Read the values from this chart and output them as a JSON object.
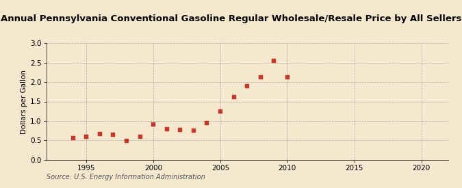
{
  "title": "Annual Pennsylvania Conventional Gasoline Regular Wholesale/Resale Price by All Sellers",
  "ylabel": "Dollars per Gallon",
  "source": "Source: U.S. Energy Information Administration",
  "background_color": "#f5e8ce",
  "plot_bg_color": "#f5e8ce",
  "years": [
    1994,
    1995,
    1996,
    1997,
    1998,
    1999,
    2000,
    2001,
    2002,
    2003,
    2004,
    2005,
    2006,
    2007,
    2008,
    2009,
    2010
  ],
  "values": [
    0.55,
    0.6,
    0.66,
    0.64,
    0.49,
    0.59,
    0.91,
    0.79,
    0.77,
    0.76,
    0.95,
    1.25,
    1.61,
    1.9,
    2.12,
    2.55,
    2.12
  ],
  "marker_color": "#c0392b",
  "marker_size": 4,
  "xlim": [
    1992,
    2022
  ],
  "ylim": [
    0.0,
    3.0
  ],
  "xticks": [
    1995,
    2000,
    2005,
    2010,
    2015,
    2020
  ],
  "yticks": [
    0.0,
    0.5,
    1.0,
    1.5,
    2.0,
    2.5,
    3.0
  ],
  "grid_color": "#aaaaaa",
  "title_fontsize": 9.5,
  "label_fontsize": 7.5,
  "tick_fontsize": 7.5,
  "source_fontsize": 7.0
}
